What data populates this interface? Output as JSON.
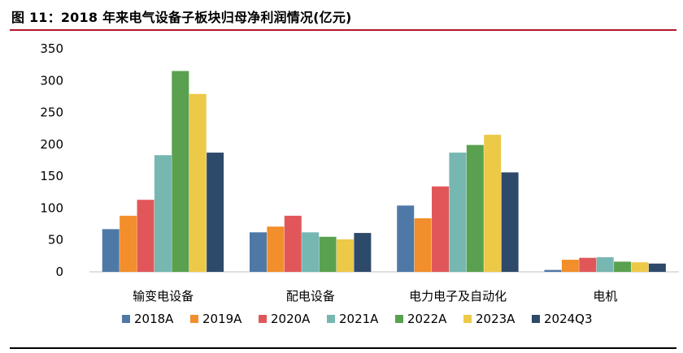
{
  "figure": {
    "title": "图 11：2018 年来电气设备子板块归母净利润情况(亿元)"
  },
  "colors": {
    "title_rule": "#b3152c",
    "axis": "#bfbfbf",
    "tick_text": "#000000"
  },
  "chart_data": {
    "type": "bar",
    "title": "",
    "xlabel": "",
    "ylabel": "",
    "ylim": [
      0,
      350
    ],
    "yticks": [
      0,
      50,
      100,
      150,
      200,
      250,
      300,
      350
    ],
    "grid": false,
    "legend_position": "bottom",
    "categories": [
      "输变电设备",
      "配电设备",
      "电力电子及自动化",
      "电机"
    ],
    "series": [
      {
        "name": "2018A",
        "color": "#4e79a7",
        "values": [
          67,
          62,
          104,
          3
        ]
      },
      {
        "name": "2019A",
        "color": "#f28e2b",
        "values": [
          88,
          71,
          84,
          19
        ]
      },
      {
        "name": "2020A",
        "color": "#e15759",
        "values": [
          113,
          88,
          134,
          22
        ]
      },
      {
        "name": "2021A",
        "color": "#76b7b2",
        "values": [
          183,
          62,
          187,
          23
        ]
      },
      {
        "name": "2022A",
        "color": "#59a14f",
        "values": [
          315,
          55,
          199,
          16
        ]
      },
      {
        "name": "2023A",
        "color": "#edc948",
        "values": [
          279,
          51,
          215,
          15
        ]
      },
      {
        "name": "2024Q3",
        "color": "#2e4a6b",
        "values": [
          187,
          61,
          156,
          13
        ]
      }
    ]
  }
}
